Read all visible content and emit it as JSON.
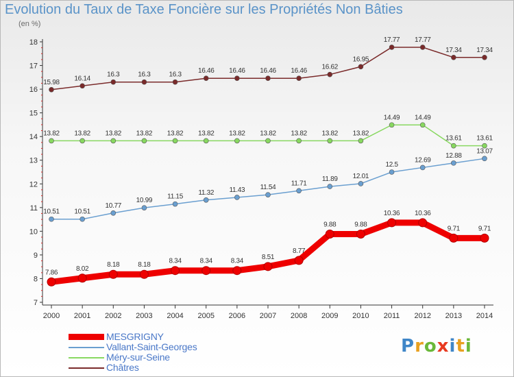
{
  "title": "Evolution du Taux de Taxe Foncière sur les Propriétés Non Bâties",
  "subtitle": "(en %)",
  "logo": {
    "letters": [
      "P",
      "r",
      "o",
      "x",
      "i",
      "t",
      "i"
    ],
    "colors": [
      "#3f86c8",
      "#e8a020",
      "#6ab83a",
      "#e83a20",
      "#3f86c8",
      "#e8a020",
      "#6ab83a"
    ]
  },
  "chart_data": {
    "type": "line",
    "x": [
      "2000",
      "2001",
      "2002",
      "2003",
      "2004",
      "2005",
      "2006",
      "2007",
      "2008",
      "2009",
      "2010",
      "2011",
      "2012",
      "2013",
      "2014"
    ],
    "ylim": [
      7,
      18
    ],
    "yticks": [
      "7",
      "8",
      "9",
      "10",
      "11",
      "12",
      "13",
      "14",
      "15",
      "16",
      "17",
      "18"
    ],
    "grid": false,
    "legend_position": "bottom-left",
    "series": [
      {
        "name": "Châtres",
        "color": "#7a2a2a",
        "values": [
          15.98,
          16.14,
          16.3,
          16.3,
          16.3,
          16.46,
          16.46,
          16.46,
          16.46,
          16.62,
          16.95,
          17.77,
          17.77,
          17.34,
          17.34
        ],
        "labels": [
          "15.98",
          "16.14",
          "16.3",
          "16.3",
          "16.3",
          "16.46",
          "16.46",
          "16.46",
          "16.46",
          "16.62",
          "16.95",
          "17.77",
          "17.77",
          "17.34",
          "17.34"
        ]
      },
      {
        "name": "Méry-sur-Seine",
        "color": "#88d860",
        "values": [
          13.82,
          13.82,
          13.82,
          13.82,
          13.82,
          13.82,
          13.82,
          13.82,
          13.82,
          13.82,
          13.82,
          14.49,
          14.49,
          13.61,
          13.61
        ],
        "labels": [
          "13.82",
          "13.82",
          "13.82",
          "13.82",
          "13.82",
          "13.82",
          "13.82",
          "13.82",
          "13.82",
          "13.82",
          "13.82",
          "14.49",
          "14.49",
          "13.61",
          "13.61"
        ]
      },
      {
        "name": "Vallant-Saint-Georges",
        "color": "#6a9fd0",
        "values": [
          10.51,
          10.51,
          10.77,
          10.99,
          11.15,
          11.32,
          11.43,
          11.54,
          11.71,
          11.89,
          12.01,
          12.5,
          12.69,
          12.88,
          13.07
        ],
        "labels": [
          "10.51",
          "10.51",
          "10.77",
          "10.99",
          "11.15",
          "11.32",
          "11.43",
          "11.54",
          "11.71",
          "11.89",
          "12.01",
          "12.5",
          "12.69",
          "12.88",
          "13.07"
        ]
      },
      {
        "name": "MESGRIGNY",
        "color": "#ee0000",
        "values": [
          7.86,
          8.02,
          8.18,
          8.18,
          8.34,
          8.34,
          8.34,
          8.51,
          8.77,
          9.88,
          9.88,
          10.36,
          10.36,
          9.71,
          9.71
        ],
        "labels": [
          "7.86",
          "8.02",
          "8.18",
          "8.18",
          "8.34",
          "8.34",
          "8.34",
          "8.51",
          "8.77",
          "9.88",
          "9.88",
          "10.36",
          "10.36",
          "9.71",
          "9.71"
        ]
      }
    ]
  },
  "legend": [
    {
      "label": "MESGRIGNY",
      "color": "#ee0000"
    },
    {
      "label": "Vallant-Saint-Georges",
      "color": "#6a9fd0"
    },
    {
      "label": "Méry-sur-Seine",
      "color": "#88d860"
    },
    {
      "label": "Châtres",
      "color": "#7a2a2a"
    }
  ]
}
